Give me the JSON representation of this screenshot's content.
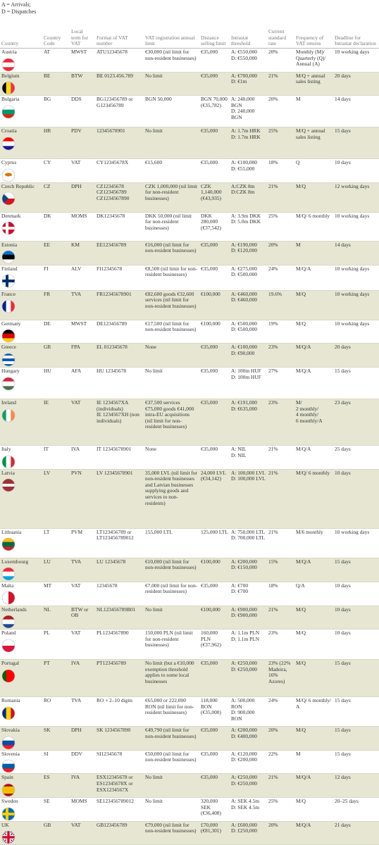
{
  "notes": [
    "A = Arrivals;",
    "D = Dispatches"
  ],
  "table": {
    "header": [
      "Country",
      "Country Code",
      "Local term for VAT",
      "Format of VAT number",
      "VAT registration annual limit",
      "Distance selling limit",
      "Intrastat threshold",
      "Current standard rate",
      "Frequency of VAT returns",
      "Deadline for Intrastat declaration"
    ],
    "rows": [
      [
        "Austria",
        "AT",
        "MWST",
        "ATU12345678",
        "€30,000 (nil limit for non-resident businesses)",
        "€35,000",
        "A: €550,000\nD: €550,000",
        "20%",
        "Monthly (M)/ Quarterly (Q)/ Annual (A)",
        "10 working days"
      ],
      [
        "Belgium",
        "BE",
        "BTW",
        "BE 0123.456.789",
        "No limit",
        "€35,000",
        "A: €700,000\nD: €1m",
        "21%",
        "M/Q + annual sales listing",
        "20 days"
      ],
      [
        "Bulgaria",
        "BG",
        "DDS",
        "BG123456789 or G123456789",
        "BGN 50,000",
        "BGN 70,000 (€35,782)",
        "A: 240,000 BGN\nD: 240,000 BGN",
        "20%",
        "M",
        "14 days"
      ],
      [
        "Croatia",
        "HR",
        "PDV",
        "12345678901",
        "No limit",
        "€35,000",
        "A: 1.7m HRK\nD: 1.7m HRK",
        "25%",
        "M/Q + annual sales listing",
        "15 days"
      ],
      [
        "Cyprus",
        "CY",
        "VAT",
        "CY12345678X",
        "€15,600",
        "€35,000",
        "A: €100,000\nD: €55,000",
        "18%",
        "Q",
        "10 days"
      ],
      [
        "Czech Republic",
        "CZ",
        "DPH",
        "CZ12345678\nCZ123456789\nCZ1234567890",
        "CZK 1,000,000 (nil limit for non-resident businesses)",
        "CZK 1,140,000 (€43,935)",
        "A:CZK 8m\nD:CZK 8m",
        "21%",
        "M/Q",
        "12 working days"
      ],
      [
        "Denmark",
        "DK",
        "MOMS",
        "DK12345678",
        "DKK 50,000 (nil limit for non-resident businesses)",
        "DKK 280,000 (€37,542)",
        "A: 3.9m DKK\nD: 5.0m DKK",
        "25%",
        "M/Q/ 6 monthly",
        "10 working days"
      ],
      [
        "Estonia",
        "EE",
        "KM",
        "EE123456789",
        "€16,000 (nil limit for non-resident businesses)",
        "€35,000",
        "A: €190,000\nD: €120,000",
        "20%",
        "M",
        "14 days"
      ],
      [
        "Finland",
        "FI",
        "ALV",
        "FI12345678",
        "€8,500 (nil limit for non-resident businesses)",
        "€35,000",
        "A: €275,000\nD: €500,000",
        "24%",
        "M/Q/A",
        "10 working days"
      ],
      [
        "France",
        "FR",
        "TVA",
        "FR12345678901",
        "€82,600 goods €32,600 services (nil limit for non-resident businesses)",
        "€100,000",
        "A: €460,000\nD: €460,000",
        "19.6%",
        "M/Q",
        "10 working days"
      ],
      [
        "Germany",
        "DE",
        "MWST",
        "DE123456789",
        "€17,500 (nil limit for non-resident businesses)",
        "€100,000",
        "A: €500,000\nD: €500,000",
        "19%",
        "M/Q",
        "10 working days"
      ],
      [
        "Greece",
        "GR",
        "FPA",
        "EL 012345678",
        "None",
        "€35,000",
        "A: €100,000\nD: €90,000",
        "23%",
        "M/Q/A",
        "20 days"
      ],
      [
        "Hungary",
        "HU",
        "AFA",
        "HU 12345678",
        "No limit",
        "€35,000",
        "A: 100m HUF\nD: 100m HUF",
        "27%",
        "M/Q/A",
        "15 days"
      ],
      [
        "Ireland",
        "IE",
        "VAT",
        "IE 1234567XA (individuals)\nIE 1234567XH (non individuals)",
        "€37,500 services €75,000 goods €41,000 intra-EU acquisitions (nil limit for non-resident businesses)",
        "€35,000",
        "A: €191,000\nD: €635,000",
        "23%",
        "M/\n2 monthly/\n4 monthly/\n6 monthly/A",
        "23 days"
      ],
      [
        "Italy",
        "IT",
        "IVA",
        "IT 12345678901",
        "None",
        "€35,000",
        "A: NIL\nD: NIL",
        "21%",
        "M/Q/A",
        "25 days"
      ],
      [
        "Latvia",
        "LV",
        "PVN",
        "LV 12345678901",
        "35,000 LVL (nil limit for non-resident businesses and Latvian businesses supplying goods and services to non-residents)",
        "24,000 LVL (€34,142)",
        "A: 100,000 LVL\nD: 100,000 LVL",
        "21%",
        "M/Q/ 6 monthly",
        "10 days"
      ],
      [
        "Lithuania",
        "LT",
        "PVM",
        "LT123456789 or LT123456789012",
        "155,000 LTL",
        "125,000 LTL",
        "A: 750,000 LTL\nD: 700,000 LTL",
        "21%",
        "M/6 monthly",
        "10 working days"
      ],
      [
        "Luxembourg",
        "LU",
        "TVA",
        "LU 12345678",
        "€10,000 (nil limit for non-resident businesses)",
        "€100,000",
        "A: €200,000\nD: €150,000",
        "15%",
        "M/Q/A",
        "15 days"
      ],
      [
        "Malta",
        "MT",
        "VAT",
        "12345678",
        "€7,000 (nil limit for non-resident businesses)",
        "€35,000",
        "A: €700\nD: €700",
        "18%",
        "Q/A",
        "10 days"
      ],
      [
        "Netherlands",
        "NL",
        "BTW or OB",
        "NL123456789B01",
        "No limit",
        "€100,000",
        "A: €900,000\nD: €900,000",
        "21%",
        "M/Q",
        "10 days"
      ],
      [
        "Poland",
        "PL",
        "VAT",
        "PL1234567890",
        "150,000 PLN (nil limit for non-resident businesses)",
        "160,000 PLN (€37,962)",
        "A: 1.1m PLN\nD: 1.1m PLN",
        "23%",
        "M/Q",
        "10 days"
      ],
      [
        "Portugal",
        "PT",
        "IVA",
        "PT123456789",
        "No limit (but a €10,000 exemption threshold applies to some local businesses",
        "€35,000",
        "A: €250,000\nD: €250,000",
        "23% (22% Madeira, 16% Azores)",
        "M/Q",
        "15 days"
      ],
      [
        "Romania",
        "RO",
        "TVA",
        "RO + 2–10 digits",
        "€65,000 or 222,000 RON (nil limit for non-resident businesses)",
        "118,000 RON (€35,000)",
        "A: 500,000 RON\nD: 900,000 RON",
        "24%",
        "M/Q/ 6 monthly/ A",
        "15 days"
      ],
      [
        "Slovakia",
        "SK",
        "DPH",
        "SK 1234567890",
        "€49,790 (nil limit for non-resident businesses)",
        "€35,000",
        "A: €200,000\nD: €400,000",
        "20%",
        "M/Q",
        "15 days"
      ],
      [
        "Slovenia",
        "SI",
        "DDV",
        "SI12345678",
        "€50,000 (nil limit for non-resident businesses)",
        "€35,000",
        "A: €120,000\nD: €200,000",
        "22%",
        "M",
        "15 days"
      ],
      [
        "Spain",
        "ES",
        "IVA",
        "ESX12345678 or ES12345678X or ESX1234567X",
        "No limit",
        "€35,000",
        "A: €250,000\nD: €250,000",
        "21%",
        "M/Q/A",
        "12 days"
      ],
      [
        "Sweden",
        "SE",
        "MOMS",
        "SE123456789012",
        "No limit",
        "320,000 SEK (€36,408)",
        "A: SEK 4.5m\nD: SEK 4.5m",
        "25%",
        "M/Q",
        "20–25 days"
      ],
      [
        "UK",
        "GB",
        "VAT",
        "GB123456789",
        "€79,000 (nil limit for non-resident businesses)",
        "£70,000 (€81,301)",
        "A: £600,000\nD: £250,000",
        "20%",
        "M/Q/A",
        "21 days"
      ]
    ]
  }
}
